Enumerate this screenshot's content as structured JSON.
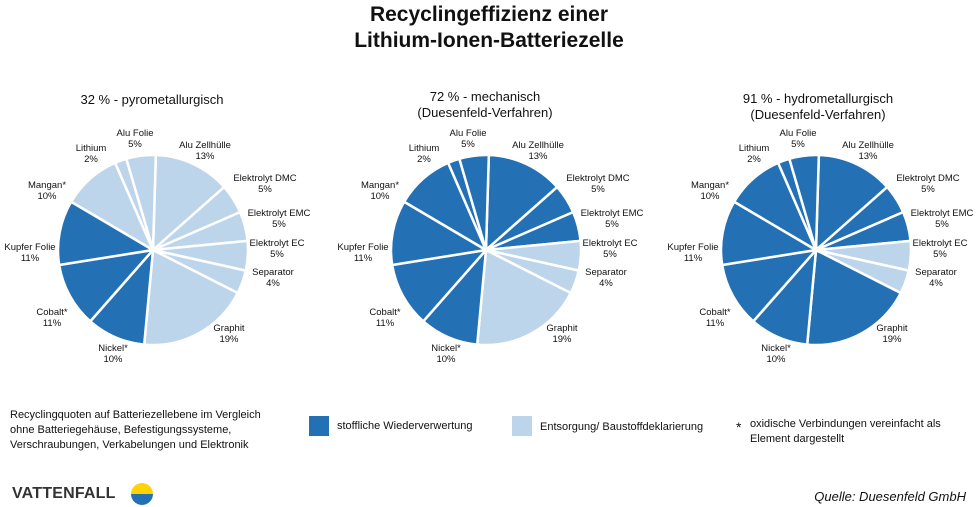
{
  "title_line1": "Recyclingeffizienz einer",
  "title_line2": "Lithium-Ionen-Batteriezelle",
  "colors": {
    "recycled": "#2370b5",
    "disposal": "#bdd5ea"
  },
  "chart_data": [
    {
      "type": "pie",
      "title": "32 % - pyrometallurgisch",
      "subtitle": "",
      "categories": [
        "Alu Zellhülle",
        "Elektrolyt DMC",
        "Elektrolyt EMC",
        "Elektrolyt EC",
        "Separator",
        "Graphit",
        "Nickel*",
        "Cobalt*",
        "Kupfer Folie",
        "Mangan*",
        "Lithium",
        "Alu Folie"
      ],
      "values": [
        13,
        5,
        5,
        5,
        4,
        19,
        10,
        11,
        11,
        10,
        2,
        5
      ],
      "recycled": [
        false,
        false,
        false,
        false,
        false,
        false,
        true,
        true,
        true,
        false,
        false,
        false
      ]
    },
    {
      "type": "pie",
      "title": "72 % - mechanisch",
      "subtitle": "(Duesenfeld-Verfahren)",
      "categories": [
        "Alu Zellhülle",
        "Elektrolyt DMC",
        "Elektrolyt EMC",
        "Elektrolyt EC",
        "Separator",
        "Graphit",
        "Nickel*",
        "Cobalt*",
        "Kupfer Folie",
        "Mangan*",
        "Lithium",
        "Alu Folie"
      ],
      "values": [
        13,
        5,
        5,
        5,
        4,
        19,
        10,
        11,
        11,
        10,
        2,
        5
      ],
      "recycled": [
        true,
        true,
        true,
        false,
        false,
        false,
        true,
        true,
        true,
        true,
        true,
        true
      ]
    },
    {
      "type": "pie",
      "title": "91 % - hydrometallurgisch",
      "subtitle": "(Duesenfeld-Verfahren)",
      "categories": [
        "Alu Zellhülle",
        "Elektrolyt DMC",
        "Elektrolyt EMC",
        "Elektrolyt EC",
        "Separator",
        "Graphit",
        "Nickel*",
        "Cobalt*",
        "Kupfer Folie",
        "Mangan*",
        "Lithium",
        "Alu Folie"
      ],
      "values": [
        13,
        5,
        5,
        5,
        4,
        19,
        10,
        11,
        11,
        10,
        2,
        5
      ],
      "recycled": [
        true,
        true,
        true,
        false,
        false,
        true,
        true,
        true,
        true,
        true,
        true,
        true
      ]
    }
  ],
  "footnote": {
    "line1": "Recyclingquoten auf Batteriezellebene im Vergleich",
    "line2": "ohne Batteriegehäuse, Befestigungssysteme,",
    "line3": "Verschraubungen, Verkabelungen und Elektronik"
  },
  "legend": {
    "recycled": "stoffliche Wiederverwertung",
    "disposal": "Entsorgung/ Baustoffdeklarierung",
    "asterisk": "*",
    "asterisk_line1": "oxidische Verbindungen vereinfacht als",
    "asterisk_line2": "Element dargestellt"
  },
  "logo": "VATTENFALL",
  "source": "Quelle: Duesenfeld GmbH"
}
